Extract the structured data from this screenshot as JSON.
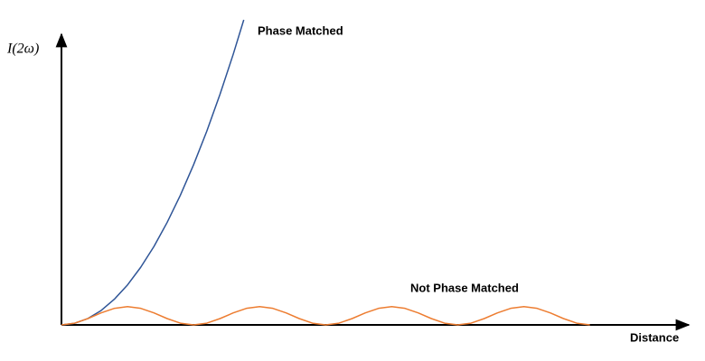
{
  "chart_data": {
    "type": "line",
    "x_label": "Distance",
    "y_label": "I(2ω)",
    "xlim": [
      0,
      47
    ],
    "ylim": [
      0,
      100
    ],
    "series": [
      {
        "name": "Phase Matched",
        "color": "#2f5597",
        "x": [
          0,
          1,
          2,
          3,
          4,
          5,
          6,
          7,
          8,
          9,
          10,
          11,
          12,
          13,
          13.8
        ],
        "values": [
          0,
          0.53,
          2.1,
          4.7,
          8.4,
          13.1,
          18.9,
          25.7,
          33.6,
          42.5,
          52.5,
          63.5,
          75.6,
          88.7,
          100
        ]
      },
      {
        "name": "Not Phase Matched",
        "color": "#ed7d31",
        "x": [
          0,
          1,
          2,
          3,
          4,
          5,
          6,
          7,
          8,
          9,
          10,
          11,
          12,
          13,
          14,
          15,
          16,
          17,
          18,
          19,
          20,
          21,
          22,
          23,
          24,
          25,
          26,
          27,
          28,
          29,
          30,
          31,
          32,
          33,
          34,
          35,
          36,
          37,
          38,
          39,
          40
        ],
        "values": [
          0,
          0.57,
          2.07,
          3.93,
          5.43,
          6,
          5.43,
          3.93,
          2.07,
          0.57,
          0,
          0.57,
          2.07,
          3.93,
          5.43,
          6,
          5.43,
          3.93,
          2.07,
          0.57,
          0,
          0.57,
          2.07,
          3.93,
          5.43,
          6,
          5.43,
          3.93,
          2.07,
          0.57,
          0,
          0.57,
          2.07,
          3.93,
          5.43,
          6,
          5.43,
          3.93,
          2.07,
          0.57,
          0
        ]
      }
    ]
  }
}
